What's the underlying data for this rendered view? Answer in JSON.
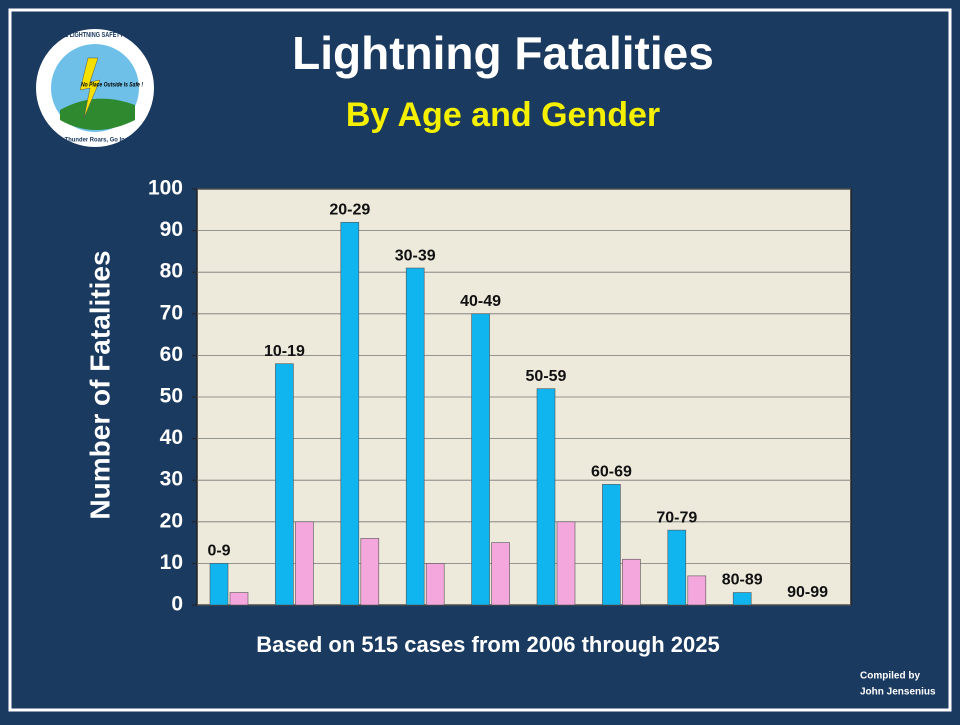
{
  "logo": {
    "name": "NATIONAL LIGHTNING SAFETY COUNCIL",
    "motto": "No Place Outside Is Safe !",
    "slogan": "When Thunder Roars, Go Indoors!"
  },
  "chart_data": {
    "type": "bar",
    "title": "Lightning Fatalities",
    "subtitle": "By Age and Gender",
    "y_label": "Number of Fatalities",
    "note": "Based on 515 cases from 2006 through 2025",
    "credit": [
      "Compiled by",
      "John Jensenius"
    ],
    "categories": [
      "0-9",
      "10-19",
      "20-29",
      "30-39",
      "40-49",
      "50-59",
      "60-69",
      "70-79",
      "80-89",
      "90-99"
    ],
    "series": [
      {
        "color": "#10b4ee",
        "values": [
          10,
          58,
          92,
          81,
          70,
          52,
          29,
          18,
          3,
          0
        ]
      },
      {
        "color": "#f4a7dc",
        "values": [
          3,
          20,
          16,
          10,
          15,
          20,
          11,
          7,
          0,
          0
        ]
      }
    ],
    "ylim": [
      0,
      100
    ],
    "yticks": [
      0,
      10,
      20,
      30,
      40,
      50,
      60,
      70,
      80,
      90,
      100
    ],
    "grid": true
  }
}
